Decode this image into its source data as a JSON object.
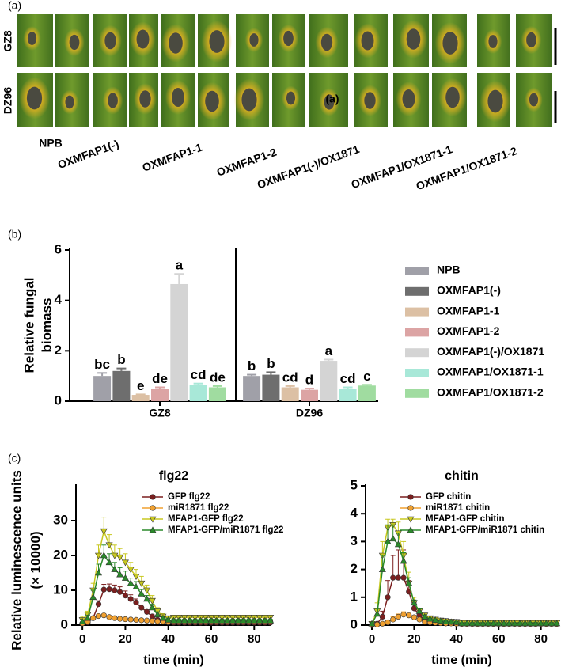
{
  "panel_a": {
    "label": "(a)",
    "rows": [
      "GZ8",
      "DZ96"
    ],
    "overlay": "(a)",
    "genotypes": [
      "NPB",
      "OXMFAP1(-)",
      "OXMFAP1-1",
      "OXMFAP1-2",
      "OXMFAP1(-)/OX1871",
      "OXMFAP1/OX1871-1",
      "OXMFAP1/OX1871-2"
    ]
  },
  "chart_data": [
    {
      "type": "bar",
      "panel_label": "(b)",
      "ylabel": [
        "Relative fungal",
        "biomass"
      ],
      "categories": [
        "GZ8",
        "DZ96"
      ],
      "ylim": [
        0,
        6
      ],
      "yticks": [
        0,
        2,
        4,
        6
      ],
      "legend": "right",
      "series": [
        {
          "name": "NPB",
          "color": "#a0a0a8",
          "values": [
            1.0,
            1.0
          ],
          "errors": [
            0.12,
            0.05
          ],
          "letters": [
            "bc",
            "b"
          ]
        },
        {
          "name": "OXMFAP1(-)",
          "color": "#6e6e6e",
          "values": [
            1.2,
            1.05
          ],
          "errors": [
            0.1,
            0.1
          ],
          "letters": [
            "b",
            "b"
          ]
        },
        {
          "name": "OXMFAP1-1",
          "color": "#dcc0a4",
          "values": [
            0.25,
            0.55
          ],
          "errors": [
            0.02,
            0.05
          ],
          "letters": [
            "e",
            "cd"
          ]
        },
        {
          "name": "OXMFAP1-2",
          "color": "#dca4a4",
          "values": [
            0.5,
            0.45
          ],
          "errors": [
            0.05,
            0.05
          ],
          "letters": [
            "de",
            "d"
          ]
        },
        {
          "name": "OXMFAP1(-)/OX1871",
          "color": "#d4d4d4",
          "values": [
            4.65,
            1.6
          ],
          "errors": [
            0.4,
            0.05
          ],
          "letters": [
            "a",
            "a"
          ]
        },
        {
          "name": "OXMFAP1/OX1871-1",
          "color": "#a8e8d8",
          "values": [
            0.65,
            0.5
          ],
          "errors": [
            0.05,
            0.05
          ],
          "letters": [
            "cd",
            "cd"
          ]
        },
        {
          "name": "OXMFAP1/OX1871-2",
          "color": "#a0dca0",
          "values": [
            0.55,
            0.62
          ],
          "errors": [
            0.05,
            0.03
          ],
          "letters": [
            "de",
            "c"
          ]
        }
      ]
    },
    {
      "type": "line",
      "panel_label": "(c)",
      "title": "flg22",
      "xlabel": "time (min)",
      "ylabel": [
        "Relative luminescence units",
        "(× 10000)"
      ],
      "xlim": [
        -3,
        88
      ],
      "xticks": [
        0,
        20,
        40,
        60,
        80
      ],
      "ylim": [
        0,
        40
      ],
      "yticks": [
        0,
        10,
        20,
        30
      ],
      "legend": "upper right",
      "x": [
        0,
        2.5,
        5,
        7.5,
        10,
        12.5,
        15,
        17.5,
        20,
        22.5,
        25,
        27.5,
        30,
        32.5,
        35,
        37.5,
        40,
        42.5,
        45,
        47.5,
        50,
        52.5,
        55,
        57.5,
        60,
        62.5,
        65,
        67.5,
        70,
        72.5,
        75,
        77.5,
        80,
        82.5,
        85,
        87.5
      ],
      "series": [
        {
          "name": "GFP flg22",
          "color": "#7b1f1f",
          "marker": "circle",
          "values": [
            0.5,
            0.8,
            2,
            6,
            10.2,
            10.3,
            10,
            9.5,
            8.5,
            7.5,
            6.5,
            5,
            3.8,
            2.5,
            1.5,
            1,
            0.8,
            0.7,
            0.7,
            0.7,
            0.7,
            0.7,
            0.7,
            0.7,
            0.7,
            0.7,
            0.7,
            0.7,
            0.7,
            0.7,
            0.7,
            0.7,
            0.7,
            0.7,
            0.7,
            0.7
          ],
          "errors": [
            0.3,
            0.3,
            0.5,
            1,
            1.5,
            1.5,
            1.5,
            1.5,
            1.3,
            1.2,
            1,
            0.8,
            0.6,
            0.5,
            0.4,
            0.3,
            0.3,
            0.3,
            0.3,
            0.3,
            0.3,
            0.3,
            0.3,
            0.3,
            0.3,
            0.3,
            0.3,
            0.3,
            0.3,
            0.3,
            0.3,
            0.3,
            0.3,
            0.3,
            0.3,
            0.3
          ]
        },
        {
          "name": "miR1871 flg22",
          "color": "#f0a030",
          "marker": "circle",
          "values": [
            0.5,
            1,
            2,
            2.6,
            2.8,
            2.3,
            2,
            1.8,
            1.7,
            1.6,
            1.5,
            1.4,
            1.3,
            1.2,
            1.1,
            1.1,
            1,
            1,
            1,
            1,
            1,
            1,
            1,
            1,
            1,
            1,
            1,
            1,
            1,
            1,
            1,
            1,
            1,
            1,
            1,
            1
          ],
          "errors": [
            0.2,
            0.2,
            0.3,
            0.4,
            0.4,
            0.3,
            0.3,
            0.2,
            0.2,
            0.2,
            0.2,
            0.2,
            0.2,
            0.2,
            0.2,
            0.2,
            0.2,
            0.2,
            0.2,
            0.2,
            0.2,
            0.2,
            0.2,
            0.2,
            0.2,
            0.2,
            0.2,
            0.2,
            0.2,
            0.2,
            0.2,
            0.2,
            0.2,
            0.2,
            0.2,
            0.2
          ]
        },
        {
          "name": "MFAP1-GFP flg22",
          "color": "#c8c820",
          "marker": "triangle-down",
          "values": [
            1.5,
            3,
            10,
            20,
            27,
            23,
            20,
            19.5,
            18,
            16,
            14,
            12,
            10,
            7,
            4,
            2.5,
            2,
            2.2,
            2.2,
            2.2,
            2.2,
            2.2,
            2.2,
            2.2,
            2.2,
            2.2,
            2.2,
            2.2,
            2.2,
            2.2,
            2.2,
            2.2,
            2.2,
            2.2,
            2.2,
            2.2
          ],
          "errors": [
            1,
            1,
            2,
            3,
            4,
            3,
            3,
            2.5,
            2.5,
            2,
            2,
            2,
            1.5,
            1.5,
            1,
            0.8,
            0.6,
            0.6,
            0.6,
            0.6,
            0.6,
            0.6,
            0.6,
            0.6,
            0.6,
            0.6,
            0.6,
            0.6,
            0.6,
            0.6,
            0.6,
            0.6,
            0.6,
            0.6,
            0.6,
            0.6
          ]
        },
        {
          "name": "MFAP1-GFP/miR1871 flg22",
          "color": "#2a8a2a",
          "marker": "triangle-up",
          "values": [
            1,
            2,
            8,
            15,
            20,
            18,
            16,
            14.5,
            13.5,
            12,
            11,
            9,
            7.5,
            5,
            3,
            2,
            1.5,
            1.3,
            1.3,
            1.3,
            1.3,
            1.3,
            1.3,
            1.3,
            1.3,
            1.3,
            1.3,
            1.3,
            1.3,
            1.3,
            1.3,
            1.3,
            1.3,
            1.3,
            1.3,
            1.3
          ],
          "errors": [
            0.5,
            0.8,
            2,
            2.5,
            3,
            2.5,
            2,
            2,
            2,
            1.5,
            1.5,
            1.2,
            1,
            1,
            0.8,
            0.5,
            0.5,
            0.4,
            0.4,
            0.4,
            0.4,
            0.4,
            0.4,
            0.4,
            0.4,
            0.4,
            0.4,
            0.4,
            0.4,
            0.4,
            0.4,
            0.4,
            0.4,
            0.4,
            0.4,
            0.4
          ]
        }
      ]
    },
    {
      "type": "line",
      "title": "chitin",
      "xlabel": "time (min)",
      "xlim": [
        -3,
        88
      ],
      "xticks": [
        0,
        20,
        40,
        60,
        80
      ],
      "ylim": [
        0,
        5
      ],
      "yticks": [
        0,
        1,
        2,
        3,
        4,
        5
      ],
      "legend": "upper right",
      "x": [
        0,
        2.5,
        5,
        7.5,
        10,
        12.5,
        15,
        17.5,
        20,
        22.5,
        25,
        27.5,
        30,
        32.5,
        35,
        37.5,
        40,
        42.5,
        45,
        47.5,
        50,
        52.5,
        55,
        57.5,
        60,
        62.5,
        65,
        67.5,
        70,
        72.5,
        75,
        77.5,
        80,
        82.5,
        85,
        87.5
      ],
      "series": [
        {
          "name": "GFP chitin",
          "color": "#7b1f1f",
          "marker": "circle",
          "values": [
            0,
            0.05,
            0.3,
            1,
            1.7,
            1.7,
            1.7,
            1.2,
            0.6,
            0.35,
            0.2,
            0.15,
            0.12,
            0.1,
            0.1,
            0.09,
            0.08,
            0.06,
            0.06,
            0.06,
            0.06,
            0.06,
            0.06,
            0.06,
            0.06,
            0.06,
            0.06,
            0.06,
            0.06,
            0.06,
            0.06,
            0.06,
            0.06,
            0.06,
            0.06,
            0.06
          ],
          "errors": [
            0.02,
            0.05,
            0.2,
            0.6,
            0.8,
            1,
            1,
            0.4,
            0.2,
            0.1,
            0.05,
            0.05,
            0.05,
            0.05,
            0.05,
            0.05,
            0.05,
            0.05,
            0.05,
            0.05,
            0.05,
            0.05,
            0.05,
            0.05,
            0.05,
            0.05,
            0.05,
            0.05,
            0.05,
            0.05,
            0.05,
            0.05,
            0.05,
            0.05,
            0.05,
            0.05
          ]
        },
        {
          "name": "miR1871 chitin",
          "color": "#f0a030",
          "marker": "circle",
          "values": [
            0,
            0.02,
            0.05,
            0.1,
            0.2,
            0.3,
            0.38,
            0.35,
            0.28,
            0.2,
            0.12,
            0.1,
            0.08,
            0.07,
            0.06,
            0.06,
            0.05,
            0.04,
            0.04,
            0.04,
            0.04,
            0.04,
            0.04,
            0.04,
            0.04,
            0.04,
            0.04,
            0.04,
            0.04,
            0.04,
            0.04,
            0.04,
            0.04,
            0.04,
            0.04,
            0.04
          ],
          "errors": [
            0.02,
            0.02,
            0.03,
            0.05,
            0.1,
            0.1,
            0.1,
            0.08,
            0.06,
            0.05,
            0.03,
            0.03,
            0.02,
            0.02,
            0.02,
            0.02,
            0.02,
            0.02,
            0.02,
            0.02,
            0.02,
            0.02,
            0.02,
            0.02,
            0.02,
            0.02,
            0.02,
            0.02,
            0.02,
            0.02,
            0.02,
            0.02,
            0.02,
            0.02,
            0.02,
            0.02
          ]
        },
        {
          "name": "MFAP1-GFP chitin",
          "color": "#c8c820",
          "marker": "triangle-down",
          "values": [
            0.05,
            0.5,
            2.5,
            3.5,
            3.6,
            3.3,
            2.5,
            1.5,
            0.8,
            0.5,
            0.35,
            0.25,
            0.2,
            0.17,
            0.15,
            0.13,
            0.12,
            0.08,
            0.08,
            0.08,
            0.08,
            0.08,
            0.08,
            0.08,
            0.08,
            0.08,
            0.08,
            0.08,
            0.08,
            0.08,
            0.08,
            0.08,
            0.08,
            0.08,
            0.08,
            0.08
          ],
          "errors": [
            0.05,
            0.3,
            0.5,
            0.3,
            0.2,
            0.4,
            0.5,
            0.4,
            0.2,
            0.1,
            0.08,
            0.06,
            0.05,
            0.05,
            0.05,
            0.04,
            0.04,
            0.04,
            0.04,
            0.04,
            0.04,
            0.04,
            0.04,
            0.04,
            0.04,
            0.04,
            0.04,
            0.04,
            0.04,
            0.04,
            0.04,
            0.04,
            0.04,
            0.04,
            0.04,
            0.04
          ]
        },
        {
          "name": "MFAP1-GFP/miR1871 chitin",
          "color": "#2a8a2a",
          "marker": "triangle-up",
          "values": [
            0.05,
            0.4,
            2,
            3,
            3.1,
            2.9,
            2.3,
            1.5,
            0.8,
            0.5,
            0.3,
            0.22,
            0.18,
            0.15,
            0.13,
            0.11,
            0.1,
            0.06,
            0.06,
            0.06,
            0.06,
            0.06,
            0.06,
            0.06,
            0.06,
            0.06,
            0.06,
            0.06,
            0.06,
            0.06,
            0.06,
            0.06,
            0.06,
            0.06,
            0.06,
            0.06
          ],
          "errors": [
            0.05,
            0.2,
            0.5,
            0.6,
            0.5,
            0.4,
            0.3,
            0.2,
            0.1,
            0.08,
            0.05,
            0.03,
            0.03,
            0.03,
            0.03,
            0.03,
            0.03,
            0.03,
            0.03,
            0.03,
            0.03,
            0.03,
            0.03,
            0.03,
            0.03,
            0.03,
            0.03,
            0.03,
            0.03,
            0.03,
            0.03,
            0.03,
            0.03,
            0.03,
            0.03,
            0.03
          ]
        }
      ]
    }
  ]
}
